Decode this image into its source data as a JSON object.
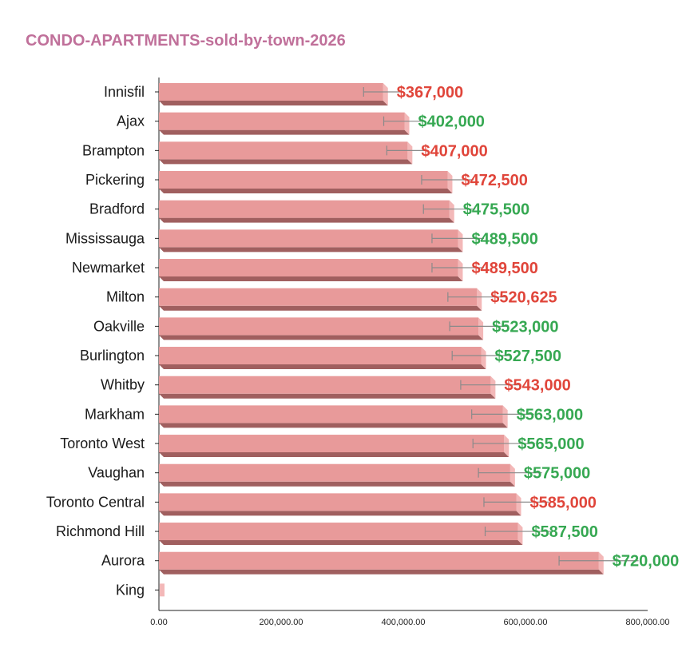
{
  "chart_data": {
    "type": "bar",
    "orientation": "horizontal",
    "title": "CONDO-APARTMENTS-sold-by-town-2026",
    "title_color": "#c0709a",
    "bar_color": "#e89a9a",
    "bar_side_color": "#f3b8b8",
    "bar_shadow_color": "#a05f5f",
    "positive_color": "#36a852",
    "negative_color": "#e0453a",
    "categories": [
      "Innisfil",
      "Ajax",
      "Brampton",
      "Pickering",
      "Bradford",
      "Mississauga",
      "Newmarket",
      "Milton",
      "Oakville",
      "Burlington",
      "Whitby",
      "Markham",
      "Toronto West",
      "Vaughan",
      "Toronto Central",
      "Richmond Hill",
      "Aurora",
      "King"
    ],
    "values": [
      367000,
      402000,
      407000,
      472500,
      475500,
      489500,
      489500,
      520625,
      523000,
      527500,
      543000,
      563000,
      565000,
      575000,
      585000,
      587500,
      720000,
      0
    ],
    "error_low": [
      335000,
      368000,
      373000,
      430000,
      433000,
      447000,
      447000,
      473000,
      476000,
      480000,
      494000,
      512000,
      514000,
      523000,
      532000,
      534000,
      655000,
      0
    ],
    "value_labels": [
      "$367,000",
      "$402,000",
      "$407,000",
      "$472,500",
      "$475,500",
      "$489,500",
      "$489,500",
      "$520,625",
      "$523,000",
      "$527,500",
      "$543,000",
      "$563,000",
      "$565,000",
      "$575,000",
      "$585,000",
      "$587,500",
      "$720,000",
      ""
    ],
    "label_colors": [
      "negative",
      "positive",
      "negative",
      "negative",
      "positive",
      "positive",
      "negative",
      "negative",
      "positive",
      "positive",
      "negative",
      "positive",
      "positive",
      "positive",
      "negative",
      "positive",
      "positive",
      "positive"
    ],
    "xlim": [
      0,
      800000
    ],
    "xticks": [
      0,
      200000,
      400000,
      600000,
      800000
    ],
    "xtick_labels": [
      "0.00",
      "200,000.00",
      "400,000.00",
      "600,000.00",
      "800,000.00"
    ],
    "xlabel": "",
    "ylabel": "",
    "grid": false
  }
}
